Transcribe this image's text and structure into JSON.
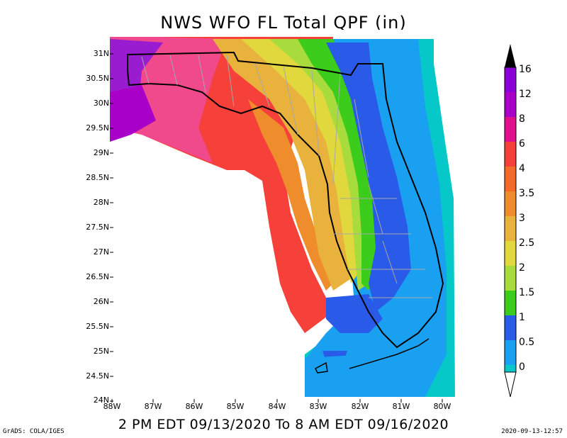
{
  "title": "NWS WFO FL Total QPF (in)",
  "subtitle": "2 PM EDT 09/13/2020 To 8 AM EDT 09/16/2020",
  "credit_left": "GrADS: COLA/IGES",
  "credit_right": "2020-09-13-12:57",
  "lat_labels": [
    "31N",
    "30.5N",
    "30N",
    "29.5N",
    "29N",
    "28.5N",
    "28N",
    "27.5N",
    "27N",
    "26.5N",
    "26N",
    "25.5N",
    "25N",
    "24.5N",
    "24N"
  ],
  "lon_labels": [
    "88W",
    "87W",
    "86W",
    "85W",
    "84W",
    "83W",
    "82W",
    "81W",
    "80W"
  ],
  "colorbar": {
    "labels": [
      "16",
      "12",
      "8",
      "6",
      "4",
      "3.5",
      "3",
      "2.5",
      "2",
      "1.5",
      "1",
      "0.5",
      "0"
    ],
    "colors": [
      "#8a00d8",
      "#a800c8",
      "#e0108c",
      "#f5413a",
      "#f46a2a",
      "#ef8c2c",
      "#e8b23c",
      "#e0d83c",
      "#a8dc3c",
      "#3ccc1c",
      "#2a5ae8",
      "#1aa0f0",
      "#06c8c8"
    ],
    "top_color": "#000000"
  },
  "colors": {
    "ocean_low": "#06c8c8",
    "gulf_high": "#f5413a",
    "panhandle": "#f04a8c",
    "purple": "#9a1cd0"
  }
}
